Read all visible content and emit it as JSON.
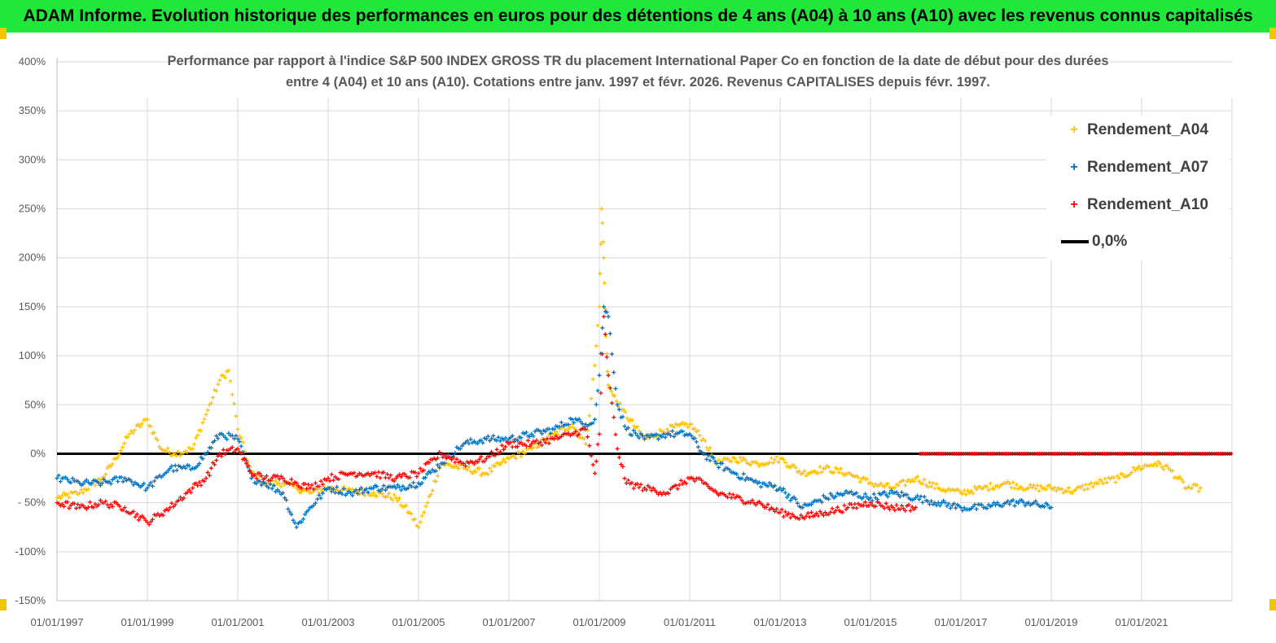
{
  "header": {
    "title": "ADAM Informe. Evolution historique des performances en euros pour des détentions de 4 ans (A04) à 10 ans (A10) avec les revenus connus capitalisés"
  },
  "colors": {
    "banner": "#20e83a",
    "a04": "#ffc000",
    "a07": "#0070c0",
    "a10": "#ff0000",
    "zero": "#000000"
  },
  "chart_data": {
    "type": "scatter",
    "title_line1": "Performance par rapport à l'indice S&P 500 INDEX GROSS TR  du placement International Paper Co en fonction de la date de début pour des durées",
    "title_line2": "entre 4 (A04) et 10 ans (A10). Cotations entre janv. 1997 et févr. 2026. Revenus CAPITALISES depuis févr. 1997.",
    "xlabel": "",
    "ylabel": "",
    "x_range": [
      1997.0,
      2023.0
    ],
    "ylim": [
      -150,
      400
    ],
    "y_ticks": [
      -150,
      -100,
      -50,
      0,
      50,
      100,
      150,
      200,
      250,
      300,
      350,
      400
    ],
    "y_tick_labels": [
      "-150%",
      "-100%",
      "- 50%",
      "0%",
      "50%",
      "100%",
      "150%",
      "200%",
      "250%",
      "300%",
      "350%",
      "400%"
    ],
    "x_ticks": [
      1997,
      1999,
      2001,
      2003,
      2005,
      2007,
      2009,
      2011,
      2013,
      2015,
      2017,
      2019,
      2021
    ],
    "x_tick_labels": [
      "01/01/1997",
      "01/01/1999",
      "01/01/2001",
      "01/01/2003",
      "01/01/2005",
      "01/01/2007",
      "01/01/2009",
      "01/01/2011",
      "01/01/2013",
      "01/01/2015",
      "01/01/2017",
      "01/01/2019",
      "01/01/2021"
    ],
    "legend": {
      "position": "top-right",
      "entries": [
        "Rendement_A04",
        "Rendement_A07",
        "Rendement_A10",
        "0,0%"
      ]
    },
    "series": [
      {
        "name": "Rendement_A04",
        "x": [
          1997.0,
          1997.5,
          1998.0,
          1998.3,
          1998.6,
          1999.0,
          1999.3,
          1999.6,
          2000.0,
          2000.3,
          2000.6,
          2000.8,
          2001.0,
          2001.3,
          2001.6,
          2002.0,
          2002.3,
          2002.6,
          2003.0,
          2003.5,
          2004.0,
          2004.5,
          2004.8,
          2005.0,
          2005.2,
          2005.5,
          2006.0,
          2006.5,
          2007.0,
          2007.5,
          2008.0,
          2008.4,
          2008.7,
          2008.9,
          2009.0,
          2009.05,
          2009.1,
          2009.15,
          2009.2,
          2009.3,
          2009.5,
          2010.0,
          2010.5,
          2011.0,
          2011.3,
          2011.6,
          2012.0,
          2012.5,
          2013.0,
          2013.5,
          2014.0,
          2014.5,
          2015.0,
          2015.5,
          2016.0,
          2016.5,
          2017.0,
          2017.5,
          2018.0,
          2018.5,
          2019.0,
          2019.5,
          2020.0,
          2020.5,
          2020.9,
          2021.3,
          2021.6,
          2022.0,
          2022.3
        ],
        "y": [
          -45,
          -40,
          -25,
          -5,
          20,
          35,
          5,
          0,
          5,
          40,
          75,
          85,
          25,
          -20,
          -30,
          -30,
          -35,
          -40,
          -35,
          -38,
          -40,
          -45,
          -60,
          -75,
          -50,
          -10,
          -15,
          -20,
          -5,
          5,
          20,
          30,
          10,
          90,
          150,
          250,
          200,
          120,
          70,
          60,
          45,
          15,
          25,
          30,
          15,
          -10,
          -5,
          -10,
          -5,
          -20,
          -15,
          -20,
          -30,
          -35,
          -25,
          -35,
          -40,
          -35,
          -30,
          -35,
          -35,
          -38,
          -30,
          -25,
          -15,
          -10,
          -15,
          -35,
          -35
        ]
      },
      {
        "name": "Rendement_A07",
        "x": [
          1997.0,
          1997.5,
          1998.0,
          1998.5,
          1999.0,
          1999.5,
          2000.0,
          2000.3,
          2000.6,
          2001.0,
          2001.3,
          2001.6,
          2002.0,
          2002.3,
          2002.6,
          2003.0,
          2003.5,
          2004.0,
          2004.5,
          2005.0,
          2005.5,
          2006.0,
          2006.5,
          2007.0,
          2007.5,
          2008.0,
          2008.4,
          2008.7,
          2008.9,
          2009.0,
          2009.1,
          2009.2,
          2009.4,
          2009.6,
          2010.0,
          2010.5,
          2011.0,
          2011.3,
          2011.6,
          2012.0,
          2012.5,
          2013.0,
          2013.5,
          2014.0,
          2014.5,
          2015.0,
          2015.5,
          2016.0,
          2016.5,
          2017.0,
          2017.5,
          2018.0,
          2018.5,
          2019.0
        ],
        "y": [
          -25,
          -30,
          -30,
          -25,
          -35,
          -15,
          -15,
          0,
          20,
          15,
          -25,
          -30,
          -40,
          -75,
          -55,
          -35,
          -40,
          -35,
          -35,
          -30,
          -10,
          10,
          15,
          15,
          20,
          25,
          35,
          30,
          35,
          80,
          150,
          140,
          50,
          25,
          15,
          20,
          20,
          0,
          -10,
          -20,
          -30,
          -35,
          -55,
          -45,
          -40,
          -45,
          -40,
          -45,
          -50,
          -55,
          -55,
          -50,
          -50,
          -55
        ]
      },
      {
        "name": "Rendement_A10",
        "x": [
          1997.0,
          1997.5,
          1998.0,
          1998.5,
          1999.0,
          1999.5,
          2000.0,
          2000.3,
          2000.6,
          2001.0,
          2001.3,
          2001.6,
          2002.0,
          2002.3,
          2002.6,
          2003.0,
          2003.5,
          2004.0,
          2004.5,
          2005.0,
          2005.5,
          2006.0,
          2006.5,
          2007.0,
          2007.5,
          2008.0,
          2008.4,
          2008.7,
          2008.9,
          2009.0,
          2009.1,
          2009.2,
          2009.4,
          2009.6,
          2010.0,
          2010.5,
          2011.0,
          2011.3,
          2011.6,
          2012.0,
          2012.5,
          2013.0,
          2013.5,
          2014.0,
          2014.5,
          2015.0,
          2015.5,
          2016.0
        ],
        "y": [
          -50,
          -55,
          -50,
          -55,
          -70,
          -55,
          -35,
          -25,
          0,
          5,
          -20,
          -25,
          -25,
          -30,
          -35,
          -25,
          -20,
          -20,
          -25,
          -20,
          0,
          -10,
          -5,
          10,
          10,
          15,
          20,
          25,
          -20,
          20,
          140,
          80,
          5,
          -30,
          -35,
          -40,
          -25,
          -30,
          -40,
          -45,
          -50,
          -60,
          -65,
          -60,
          -55,
          -50,
          -55,
          -55
        ]
      }
    ]
  }
}
